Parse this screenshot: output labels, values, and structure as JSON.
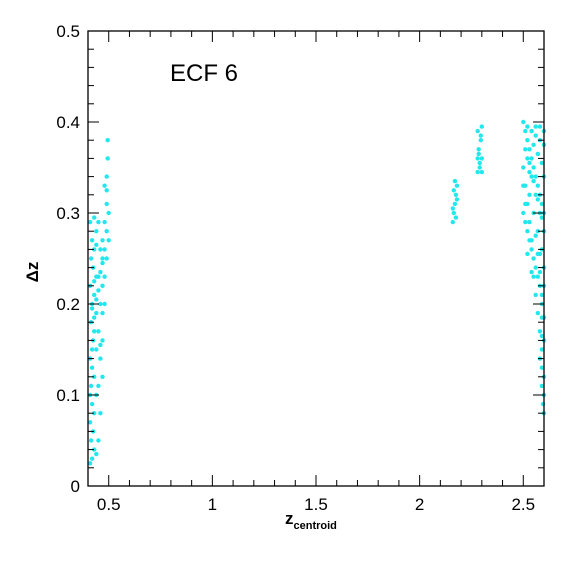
{
  "chart_data": {
    "type": "scatter",
    "annotation": "ECF 6",
    "xlabel_main": "z",
    "xlabel_sub": "centroid",
    "ylabel": "Δz",
    "xlim": [
      0.4,
      2.6
    ],
    "ylim": [
      0,
      0.5
    ],
    "x_ticks": [
      {
        "value": 0.5,
        "label": "0.5"
      },
      {
        "value": 1,
        "label": "1"
      },
      {
        "value": 1.5,
        "label": "1.5"
      },
      {
        "value": 2,
        "label": "2"
      },
      {
        "value": 2.5,
        "label": "2.5"
      }
    ],
    "y_ticks": [
      {
        "value": 0,
        "label": "0"
      },
      {
        "value": 0.1,
        "label": "0.1"
      },
      {
        "value": 0.2,
        "label": "0.2"
      },
      {
        "value": 0.3,
        "label": "0.3"
      },
      {
        "value": 0.4,
        "label": "0.4"
      },
      {
        "value": 0.5,
        "label": "0.5"
      }
    ],
    "marker_color": "#22e8ee",
    "series": [
      {
        "points": [
          [
            0.41,
            0.025
          ],
          [
            0.42,
            0.03
          ],
          [
            0.43,
            0.04
          ],
          [
            0.415,
            0.05
          ],
          [
            0.44,
            0.035
          ],
          [
            0.425,
            0.06
          ],
          [
            0.41,
            0.07
          ],
          [
            0.43,
            0.08
          ],
          [
            0.42,
            0.09
          ],
          [
            0.44,
            0.1
          ],
          [
            0.415,
            0.11
          ],
          [
            0.43,
            0.12
          ],
          [
            0.42,
            0.13
          ],
          [
            0.41,
            0.14
          ],
          [
            0.44,
            0.15
          ],
          [
            0.425,
            0.16
          ],
          [
            0.43,
            0.17
          ],
          [
            0.415,
            0.18
          ],
          [
            0.44,
            0.19
          ],
          [
            0.42,
            0.2
          ],
          [
            0.43,
            0.21
          ],
          [
            0.41,
            0.22
          ],
          [
            0.44,
            0.23
          ],
          [
            0.425,
            0.24
          ],
          [
            0.415,
            0.25
          ],
          [
            0.43,
            0.26
          ],
          [
            0.42,
            0.27
          ],
          [
            0.44,
            0.28
          ],
          [
            0.41,
            0.29
          ],
          [
            0.43,
            0.295
          ],
          [
            0.45,
            0.05
          ],
          [
            0.46,
            0.08
          ],
          [
            0.45,
            0.11
          ],
          [
            0.46,
            0.14
          ],
          [
            0.45,
            0.17
          ],
          [
            0.46,
            0.2
          ],
          [
            0.45,
            0.23
          ],
          [
            0.46,
            0.26
          ],
          [
            0.45,
            0.29
          ],
          [
            0.46,
            0.155
          ],
          [
            0.47,
            0.12
          ],
          [
            0.47,
            0.16
          ],
          [
            0.47,
            0.19
          ],
          [
            0.47,
            0.22
          ],
          [
            0.47,
            0.25
          ],
          [
            0.47,
            0.27
          ],
          [
            0.48,
            0.2
          ],
          [
            0.48,
            0.23
          ],
          [
            0.48,
            0.26
          ],
          [
            0.48,
            0.29
          ],
          [
            0.49,
            0.25
          ],
          [
            0.49,
            0.28
          ],
          [
            0.49,
            0.31
          ],
          [
            0.49,
            0.34
          ],
          [
            0.495,
            0.36
          ],
          [
            0.495,
            0.38
          ],
          [
            0.49,
            0.325
          ],
          [
            0.5,
            0.3
          ],
          [
            0.5,
            0.27
          ],
          [
            0.48,
            0.33
          ],
          [
            0.41,
            0.1
          ],
          [
            0.42,
            0.15
          ],
          [
            0.43,
            0.185
          ],
          [
            0.44,
            0.205
          ],
          [
            0.45,
            0.215
          ],
          [
            0.46,
            0.235
          ],
          [
            0.47,
            0.245
          ],
          [
            0.44,
            0.265
          ],
          [
            0.43,
            0.225
          ],
          [
            0.42,
            0.195
          ]
        ]
      },
      {
        "points": [
          [
            2.16,
            0.29
          ],
          [
            2.165,
            0.3
          ],
          [
            2.17,
            0.31
          ],
          [
            2.175,
            0.32
          ],
          [
            2.18,
            0.33
          ],
          [
            2.17,
            0.335
          ],
          [
            2.16,
            0.305
          ],
          [
            2.18,
            0.315
          ],
          [
            2.165,
            0.325
          ],
          [
            2.175,
            0.295
          ],
          [
            2.28,
            0.345
          ],
          [
            2.29,
            0.35
          ],
          [
            2.3,
            0.36
          ],
          [
            2.285,
            0.37
          ],
          [
            2.295,
            0.38
          ],
          [
            2.28,
            0.39
          ],
          [
            2.3,
            0.395
          ],
          [
            2.29,
            0.355
          ],
          [
            2.285,
            0.365
          ],
          [
            2.295,
            0.385
          ],
          [
            2.3,
            0.345
          ],
          [
            2.28,
            0.36
          ]
        ]
      },
      {
        "points": [
          [
            2.5,
            0.4
          ],
          [
            2.51,
            0.39
          ],
          [
            2.52,
            0.38
          ],
          [
            2.53,
            0.37
          ],
          [
            2.54,
            0.36
          ],
          [
            2.55,
            0.35
          ],
          [
            2.56,
            0.34
          ],
          [
            2.57,
            0.33
          ],
          [
            2.58,
            0.32
          ],
          [
            2.59,
            0.31
          ],
          [
            2.5,
            0.3
          ],
          [
            2.51,
            0.29
          ],
          [
            2.52,
            0.28
          ],
          [
            2.53,
            0.27
          ],
          [
            2.54,
            0.26
          ],
          [
            2.55,
            0.25
          ],
          [
            2.56,
            0.24
          ],
          [
            2.57,
            0.23
          ],
          [
            2.58,
            0.22
          ],
          [
            2.59,
            0.21
          ],
          [
            2.5,
            0.35
          ],
          [
            2.51,
            0.33
          ],
          [
            2.52,
            0.31
          ],
          [
            2.53,
            0.29
          ],
          [
            2.54,
            0.27
          ],
          [
            2.55,
            0.23
          ],
          [
            2.56,
            0.21
          ],
          [
            2.57,
            0.19
          ],
          [
            2.58,
            0.17
          ],
          [
            2.59,
            0.15
          ],
          [
            2.52,
            0.395
          ],
          [
            2.54,
            0.39
          ],
          [
            2.56,
            0.385
          ],
          [
            2.58,
            0.38
          ],
          [
            2.6,
            0.375
          ],
          [
            2.53,
            0.32
          ],
          [
            2.55,
            0.3
          ],
          [
            2.57,
            0.28
          ],
          [
            2.59,
            0.26
          ],
          [
            2.6,
            0.24
          ],
          [
            2.58,
            0.14
          ],
          [
            2.59,
            0.13
          ],
          [
            2.6,
            0.12
          ],
          [
            2.59,
            0.11
          ],
          [
            2.6,
            0.1
          ],
          [
            2.595,
            0.09
          ],
          [
            2.6,
            0.08
          ],
          [
            2.59,
            0.165
          ],
          [
            2.6,
            0.185
          ],
          [
            2.59,
            0.2
          ],
          [
            2.52,
            0.36
          ],
          [
            2.54,
            0.34
          ],
          [
            2.56,
            0.32
          ],
          [
            2.58,
            0.3
          ],
          [
            2.6,
            0.28
          ],
          [
            2.51,
            0.37
          ],
          [
            2.53,
            0.355
          ],
          [
            2.55,
            0.335
          ],
          [
            2.57,
            0.315
          ],
          [
            2.59,
            0.295
          ],
          [
            2.5,
            0.33
          ],
          [
            2.52,
            0.255
          ],
          [
            2.54,
            0.235
          ],
          [
            2.56,
            0.275
          ],
          [
            2.58,
            0.255
          ],
          [
            2.6,
            0.22
          ],
          [
            2.6,
            0.16
          ],
          [
            2.6,
            0.3
          ],
          [
            2.6,
            0.34
          ],
          [
            2.6,
            0.39
          ],
          [
            2.51,
            0.31
          ],
          [
            2.53,
            0.345
          ],
          [
            2.55,
            0.375
          ],
          [
            2.57,
            0.365
          ],
          [
            2.59,
            0.355
          ],
          [
            2.57,
            0.255
          ],
          [
            2.58,
            0.235
          ],
          [
            2.59,
            0.185
          ],
          [
            2.56,
            0.395
          ],
          [
            2.58,
            0.395
          ]
        ]
      }
    ]
  }
}
